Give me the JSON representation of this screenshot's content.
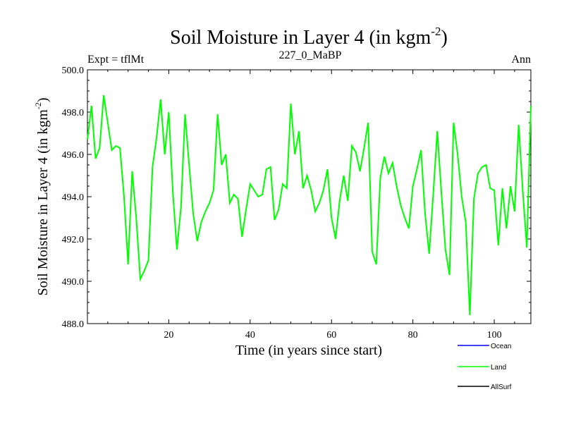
{
  "chart_data": {
    "type": "line",
    "title": "Soil Moisture in Layer 4 (in kgm",
    "title_sup": "-2",
    "title_close": ")",
    "subtitle_left": "Expt = tflMt",
    "subtitle_center": "227_0_MaBP",
    "subtitle_right": "Ann",
    "xlabel": "Time (in years since start)",
    "ylabel": "Soil Moisture in Layer 4 (in kgm",
    "ylabel_sup": "-2",
    "ylabel_close": ")",
    "xlim": [
      0,
      109
    ],
    "ylim": [
      488.0,
      500.0
    ],
    "xticks": [
      20,
      40,
      60,
      80,
      100
    ],
    "yticks": [
      "488.0",
      "490.0",
      "492.0",
      "494.0",
      "496.0",
      "498.0",
      "500.0"
    ],
    "series": [
      {
        "name": "Ocean",
        "color": "#0000ff",
        "values": []
      },
      {
        "name": "Land",
        "color": "#00ff00",
        "x": [
          0,
          1,
          2,
          3,
          4,
          5,
          6,
          7,
          8,
          9,
          10,
          11,
          12,
          13,
          14,
          15,
          16,
          17,
          18,
          19,
          20,
          21,
          22,
          23,
          24,
          25,
          26,
          27,
          28,
          29,
          30,
          31,
          32,
          33,
          34,
          35,
          36,
          37,
          38,
          39,
          40,
          41,
          42,
          43,
          44,
          45,
          46,
          47,
          48,
          49,
          50,
          51,
          52,
          53,
          54,
          55,
          56,
          57,
          58,
          59,
          60,
          61,
          62,
          63,
          64,
          65,
          66,
          67,
          68,
          69,
          70,
          71,
          72,
          73,
          74,
          75,
          76,
          77,
          78,
          79,
          80,
          81,
          82,
          83,
          84,
          85,
          86,
          87,
          88,
          89,
          90,
          91,
          92,
          93,
          94,
          95,
          96,
          97,
          98,
          99,
          100,
          101,
          102,
          103,
          104,
          105,
          106,
          107,
          108,
          109
        ],
        "values": [
          496.7,
          498.3,
          495.8,
          496.3,
          498.8,
          497.5,
          496.2,
          496.4,
          496.3,
          494.0,
          490.8,
          495.2,
          493.0,
          490.1,
          490.5,
          491.0,
          495.4,
          496.8,
          498.6,
          496.0,
          498.0,
          494.2,
          491.5,
          493.5,
          497.9,
          495.5,
          493.2,
          491.9,
          492.8,
          493.3,
          493.7,
          494.3,
          497.9,
          495.5,
          496.0,
          493.7,
          494.1,
          493.9,
          492.1,
          493.4,
          494.6,
          494.3,
          494.0,
          494.1,
          495.3,
          495.4,
          492.9,
          493.4,
          494.6,
          494.4,
          498.4,
          496.0,
          497.1,
          494.4,
          495.0,
          494.3,
          493.3,
          493.7,
          494.3,
          495.3,
          493.0,
          492.0,
          493.8,
          495.0,
          493.8,
          496.4,
          496.1,
          495.2,
          496.3,
          497.5,
          491.4,
          490.8,
          494.9,
          495.9,
          495.1,
          495.6,
          494.5,
          493.6,
          493.0,
          492.5,
          494.5,
          495.3,
          496.2,
          493.2,
          491.3,
          494.1,
          497.1,
          494.2,
          491.5,
          490.3,
          497.5,
          496.0,
          494.0,
          492.8,
          488.4,
          493.9,
          495.1,
          495.4,
          495.5,
          494.4,
          494.3,
          491.7,
          494.4,
          492.5,
          494.5,
          493.3,
          497.4,
          494.3,
          491.6,
          498.3
        ]
      },
      {
        "name": "AllSurf",
        "color": "#000000",
        "values": []
      }
    ]
  }
}
